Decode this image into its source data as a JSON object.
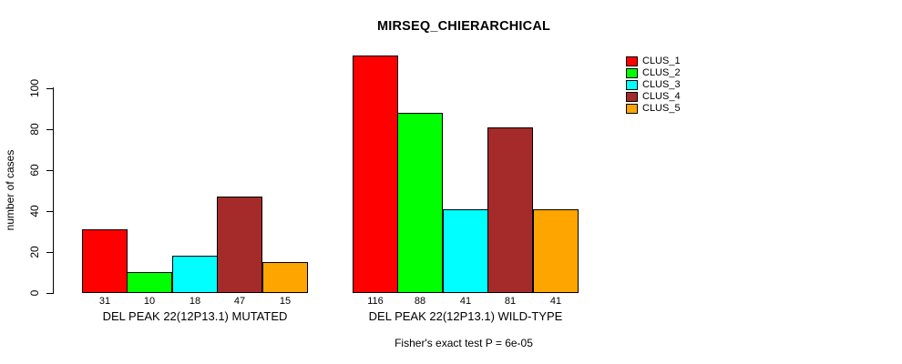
{
  "chart_data": {
    "type": "bar",
    "title": "MIRSEQ_CHIERARCHICAL",
    "ylabel": "number of cases",
    "xlabel": "",
    "ylim": [
      0,
      118
    ],
    "yticks": [
      0,
      20,
      40,
      60,
      80,
      100
    ],
    "grid": false,
    "legend_position": "top-right",
    "categories": [
      "DEL PEAK 22(12P13.1) MUTATED",
      "DEL PEAK 22(12P13.1) WILD-TYPE"
    ],
    "series": [
      {
        "name": "CLUS_1",
        "color": "#FF0000",
        "values": [
          31,
          116
        ]
      },
      {
        "name": "CLUS_2",
        "color": "#00FF00",
        "values": [
          10,
          88
        ]
      },
      {
        "name": "CLUS_3",
        "color": "#00FFFF",
        "values": [
          18,
          41
        ]
      },
      {
        "name": "CLUS_4",
        "color": "#A52A2A",
        "values": [
          47,
          81
        ]
      },
      {
        "name": "CLUS_5",
        "color": "#FFA500",
        "values": [
          15,
          41
        ]
      }
    ],
    "bar_value_labels": [
      [
        "31",
        "10",
        "18",
        "47",
        "15"
      ],
      [
        "116",
        "88",
        "41",
        "81",
        "41"
      ]
    ],
    "annotation": "Fisher's exact test P = 6e-05"
  }
}
